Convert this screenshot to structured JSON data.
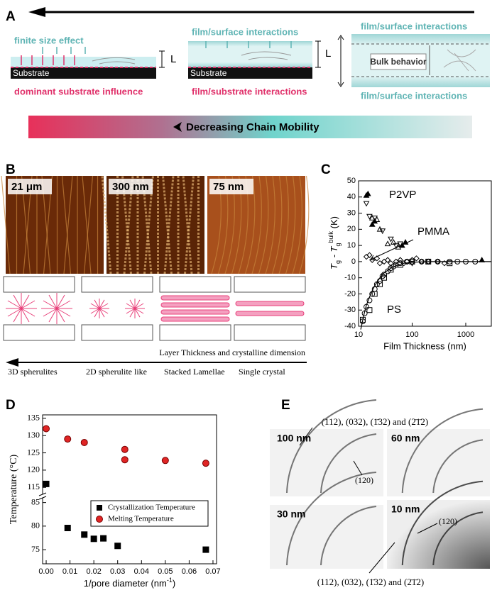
{
  "panels": {
    "A": {
      "label": "A",
      "left_top": "finite size effect",
      "left_substrate": "Substrate",
      "left_bottom": "dominant substrate influence",
      "mid_top": "film/surface interactions",
      "mid_substrate": "Substrate",
      "mid_bottom": "film/substrate interactions",
      "right_top": "film/surface interactions",
      "right_center": "Bulk behavior",
      "right_bottom": "film/surface interactions",
      "thickness": [
        "L",
        "L"
      ],
      "gradient_text": "Decreasing Chain Mobility"
    },
    "B": {
      "label": "B",
      "images": [
        "21 μm",
        "300 nm",
        "75 nm"
      ],
      "axis_text": "Layer Thickness and crystalline dimension",
      "morphologies": [
        "3D spherulites",
        "2D spherulite like",
        "Stacked Lamellae",
        "Single crystal"
      ]
    },
    "E": {
      "label": "E",
      "images": [
        "100 nm",
        "60 nm",
        "30 nm",
        "10 nm"
      ],
      "top_reflections": "(112), (032), (1̄32) and (2̄1̄2)",
      "bottom_reflections": "(112), (032), (1̄32) and (2̄1̄2)",
      "inner_reflection": [
        "(120)",
        "(120)"
      ]
    }
  },
  "chart_data": [
    {
      "type": "scatter",
      "label": "C",
      "x_label": "Film Thickness (nm)",
      "y_label_parts": [
        "T",
        "g",
        " - T",
        "g",
        "bulk",
        " (K)"
      ],
      "annotations": [
        "P2VP",
        "PMMA",
        "PS"
      ],
      "xscale": "log",
      "xlim": [
        10,
        3000
      ],
      "xticks": [
        10,
        100,
        1000
      ],
      "ylim": [
        -40,
        50
      ],
      "yticks": [
        -40,
        -30,
        -20,
        -10,
        0,
        10,
        20,
        30,
        40,
        50
      ],
      "series": [
        {
          "marker": "triangle-up",
          "filled": true,
          "color": "#000",
          "x": [
            14,
            15,
            18,
            20,
            65,
            75,
            2000
          ],
          "values": [
            41,
            42,
            23,
            25,
            10,
            12,
            1
          ]
        },
        {
          "marker": "triangle-up",
          "filled": false,
          "color": "#000",
          "x": [
            18,
            22,
            25,
            35,
            45,
            55
          ],
          "values": [
            27,
            26,
            20,
            11,
            12,
            9
          ]
        },
        {
          "marker": "triangle-down",
          "filled": false,
          "color": "#000",
          "x": [
            14,
            16,
            20,
            28,
            40,
            50,
            60,
            100
          ],
          "values": [
            36,
            28,
            27,
            19,
            14,
            10,
            11,
            -1
          ]
        },
        {
          "marker": "diamond",
          "filled": false,
          "color": "#000",
          "x": [
            14,
            16,
            18,
            22,
            25,
            30,
            35,
            40,
            50,
            60,
            70,
            80,
            100,
            120,
            150,
            200,
            300,
            400
          ],
          "values": [
            3,
            4,
            1,
            2,
            -1,
            0,
            1,
            -1,
            0,
            1,
            -1,
            0,
            1,
            2,
            0,
            0,
            0,
            -1
          ]
        },
        {
          "marker": "circle",
          "filled": false,
          "color": "#000",
          "x": [
            12,
            13,
            14,
            16,
            18,
            20,
            22,
            25,
            28,
            30,
            35,
            40,
            45,
            50,
            60,
            80,
            100,
            150,
            200,
            300,
            500,
            700,
            1000,
            1500
          ],
          "values": [
            -37,
            -32,
            -28,
            -24,
            -20,
            -17,
            -14,
            -12,
            -9,
            -8,
            -6,
            -4,
            -3,
            -2,
            -1,
            0,
            0,
            0,
            0,
            0,
            0,
            0,
            0,
            0
          ]
        },
        {
          "marker": "square",
          "filled": false,
          "color": "#000",
          "x": [
            12,
            16,
            20,
            25,
            30,
            40,
            60,
            100,
            200,
            500
          ],
          "values": [
            -36,
            -30,
            -20,
            -14,
            -10,
            -5,
            -2,
            0,
            0,
            -1
          ]
        },
        {
          "marker": "line",
          "color": "#000",
          "x": [
            11,
            12,
            13,
            14,
            16,
            18,
            20,
            25,
            30,
            40,
            50,
            70,
            100,
            200,
            3000
          ],
          "values": [
            -42,
            -36,
            -31,
            -27,
            -22,
            -18,
            -15,
            -10,
            -7,
            -4,
            -2.5,
            -1,
            -0.4,
            0,
            0
          ]
        }
      ]
    },
    {
      "type": "scatter",
      "label": "D",
      "x_label_parts": [
        "1/pore diameter (nm",
        "-1",
        ")"
      ],
      "y_label": "Temperature (°C)",
      "xlim": [
        -0.0015,
        0.0715
      ],
      "xticks": [
        {
          "value": 0,
          "label": "0.00"
        },
        {
          "value": 0.01,
          "label": "0.01"
        },
        {
          "value": 0.02,
          "label": "0.02"
        },
        {
          "value": 0.03,
          "label": "0.03"
        },
        {
          "value": 0.04,
          "label": "0.04"
        },
        {
          "value": 0.05,
          "label": "0.05"
        },
        {
          "value": 0.06,
          "label": "0.06"
        },
        {
          "value": 0.07,
          "label": "0.07"
        }
      ],
      "ylim_segments": [
        [
          72,
          86
        ],
        [
          113,
          136
        ]
      ],
      "yticks_segments": [
        [
          75,
          80,
          85
        ],
        [
          115,
          120,
          125,
          130,
          135
        ]
      ],
      "legend": "center",
      "series": [
        {
          "name": "Crystallization Temperature",
          "marker": "square",
          "color": "#000000",
          "x": [
            0,
            0.009,
            0.016,
            0.02,
            0.024,
            0.03,
            0.067
          ],
          "values": [
            116,
            79.6,
            78.2,
            77.3,
            77.4,
            75.8,
            75
          ]
        },
        {
          "name": "Melting Temperature",
          "marker": "circle",
          "color": "#e02525",
          "x": [
            0,
            0.009,
            0.016,
            0.033,
            0.033,
            0.05,
            0.067
          ],
          "values": [
            132,
            129,
            128,
            126,
            123,
            122.8,
            122
          ]
        }
      ]
    }
  ]
}
